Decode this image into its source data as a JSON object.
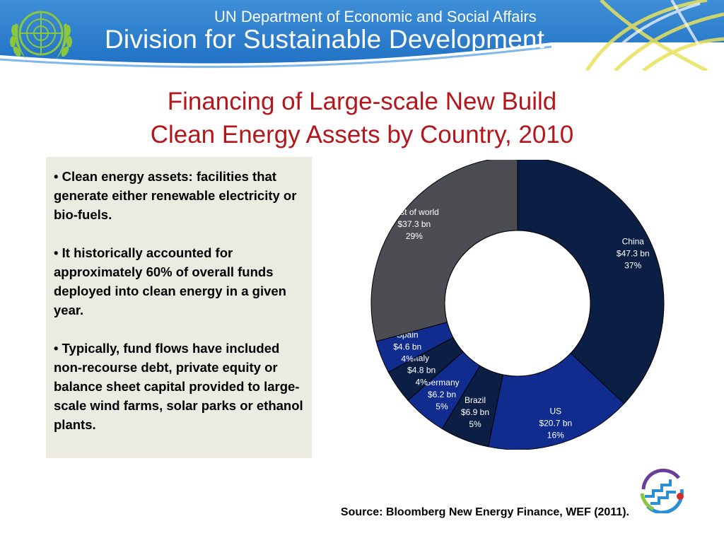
{
  "header": {
    "line1": "UN Department of Economic and Social Affairs",
    "line2": "Division for Sustainable Development",
    "colors": {
      "banner": "#2a7bd0",
      "text": "#ffffff",
      "emblem": "#8cc63f"
    }
  },
  "slide": {
    "title_line1": "Financing of Large-scale New Build",
    "title_line2": "Clean Energy Assets by Country, 2010",
    "title_color": "#b5161c"
  },
  "bullets": [
    "Clean energy assets:  facilities that generate either renewable electricity or bio-fuels.",
    "It historically accounted for approximately 60% of overall funds deployed into clean energy in a given year.",
    "Typically, fund flows have included non-recourse debt, private equity or balance sheet capital provided to large-scale wind farms, solar parks or ethanol plants."
  ],
  "chart_data": {
    "type": "pie",
    "donut": true,
    "unit": "$ bn",
    "categories": [
      "China",
      "US",
      "Brazil",
      "Germany",
      "Italy",
      "Spain",
      "Rest of world"
    ],
    "values": [
      47.3,
      20.7,
      6.9,
      6.2,
      4.8,
      4.6,
      37.3
    ],
    "value_labels": [
      "$47.3 bn",
      "$20.7 bn",
      "$6.9 bn",
      "$6.2 bn",
      "$4.8 bn",
      "$4.6 bn",
      "$37.3 bn"
    ],
    "percent_labels": [
      "37%",
      "16%",
      "5%",
      "5%",
      "4%",
      "4%",
      "29%"
    ],
    "colors": [
      "#0b1f44",
      "#0f2c8e",
      "#0b1f44",
      "#0f2c8e",
      "#0b1f44",
      "#0f2c8e",
      "#4b4d52"
    ],
    "start_angle_deg": 0,
    "direction": "clockwise",
    "legend": "none"
  },
  "source_text": "Source: Bloomberg New Energy Finance, WEF (2011)."
}
